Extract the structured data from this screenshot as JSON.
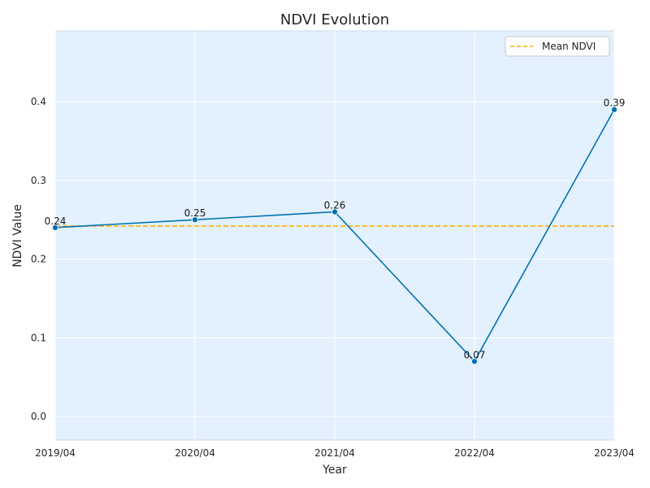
{
  "chart_data": {
    "type": "line",
    "title": "NDVI Evolution",
    "xlabel": "Year",
    "ylabel": "NDVI Value",
    "categories": [
      "2019/04",
      "2020/04",
      "2021/04",
      "2022/04",
      "2023/04"
    ],
    "series": [
      {
        "values": [
          0.24,
          0.25,
          0.26,
          0.07,
          0.39
        ],
        "color": "#0072b2"
      }
    ],
    "data_labels": [
      "0.24",
      "0.25",
      "0.26",
      "0.07",
      "0.39"
    ],
    "reference_lines": [
      {
        "name": "Mean NDVI",
        "value": 0.242,
        "color": "#ffb000",
        "style": "dashed"
      }
    ],
    "yticks": [
      0.0,
      0.1,
      0.2,
      0.3,
      0.4
    ],
    "ytick_labels": [
      "0.0",
      "0.1",
      "0.2",
      "0.3",
      "0.4"
    ],
    "ylim": [
      -0.03,
      0.49
    ],
    "grid": true,
    "legend_position": "top-right",
    "plot_background": "#e3f0fd"
  }
}
